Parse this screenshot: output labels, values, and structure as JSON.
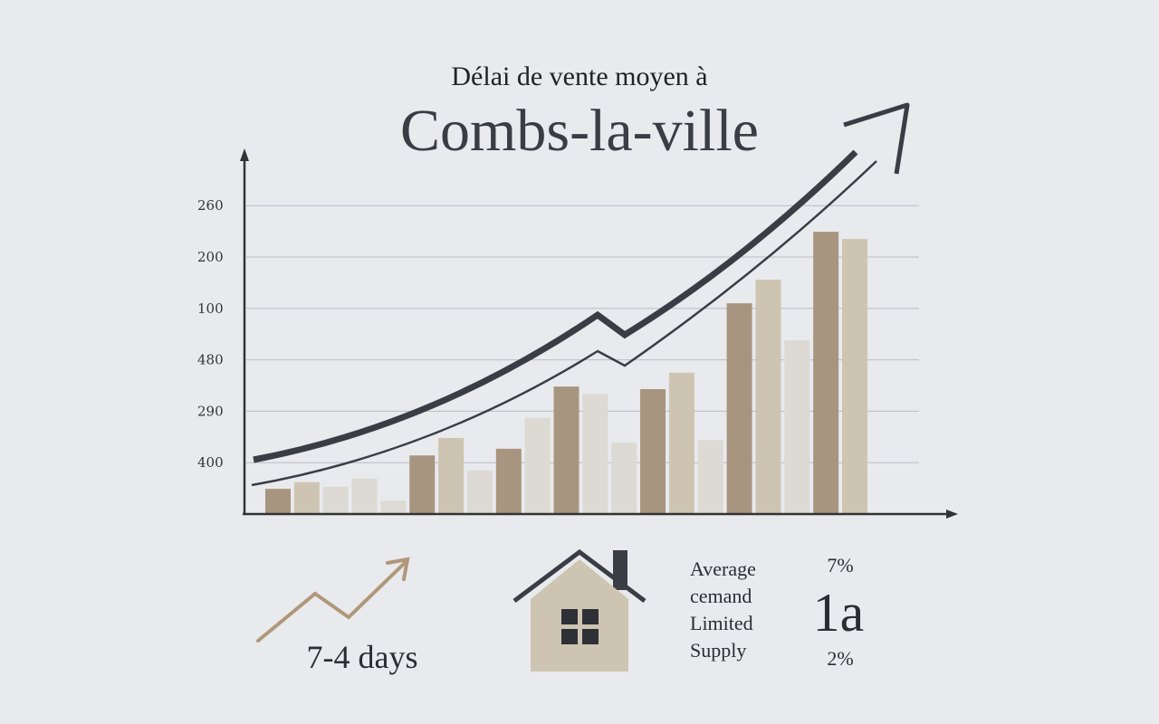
{
  "chart_data": {
    "type": "bar",
    "title": "Délai de vente moyen à",
    "subtitle": "Combs-la-ville",
    "values": [
      0.49,
      0.62,
      0.53,
      0.69,
      0.26,
      1.14,
      1.48,
      0.85,
      1.27,
      1.87,
      2.48,
      2.34,
      1.39,
      2.43,
      2.75,
      1.44,
      4.1,
      4.56,
      3.38,
      5.49,
      5.35
    ],
    "colors": [
      "#a89580",
      "#cdc5b2",
      "#dcdad3",
      "#dcdad3",
      "#dcdad3",
      "#a89580",
      "#cdc5b2",
      "#dcdad3",
      "#a89580",
      "#dcdad3",
      "#a89580",
      "#dcdad3",
      "#dcdad3",
      "#a89580",
      "#cdc5b2",
      "#dcdad3",
      "#a89580",
      "#cdc5b2",
      "#dcdad3",
      "#a89580",
      "#cdc5b2"
    ],
    "ylim": [
      0,
      6.2
    ],
    "yticks": [
      {
        "value": 1,
        "label": "400"
      },
      {
        "value": 2,
        "label": "290"
      },
      {
        "value": 3,
        "label": "480"
      },
      {
        "value": 4,
        "label": "100"
      },
      {
        "value": 5,
        "label": "200"
      },
      {
        "value": 6,
        "label": "260"
      }
    ],
    "grid": true,
    "footer": {
      "duration": "7-4 days",
      "labels": [
        "Average",
        "cemand",
        "Limited",
        "Supply"
      ],
      "top_pct": "7%",
      "big": "1a",
      "bottom_pct": "2%"
    }
  }
}
